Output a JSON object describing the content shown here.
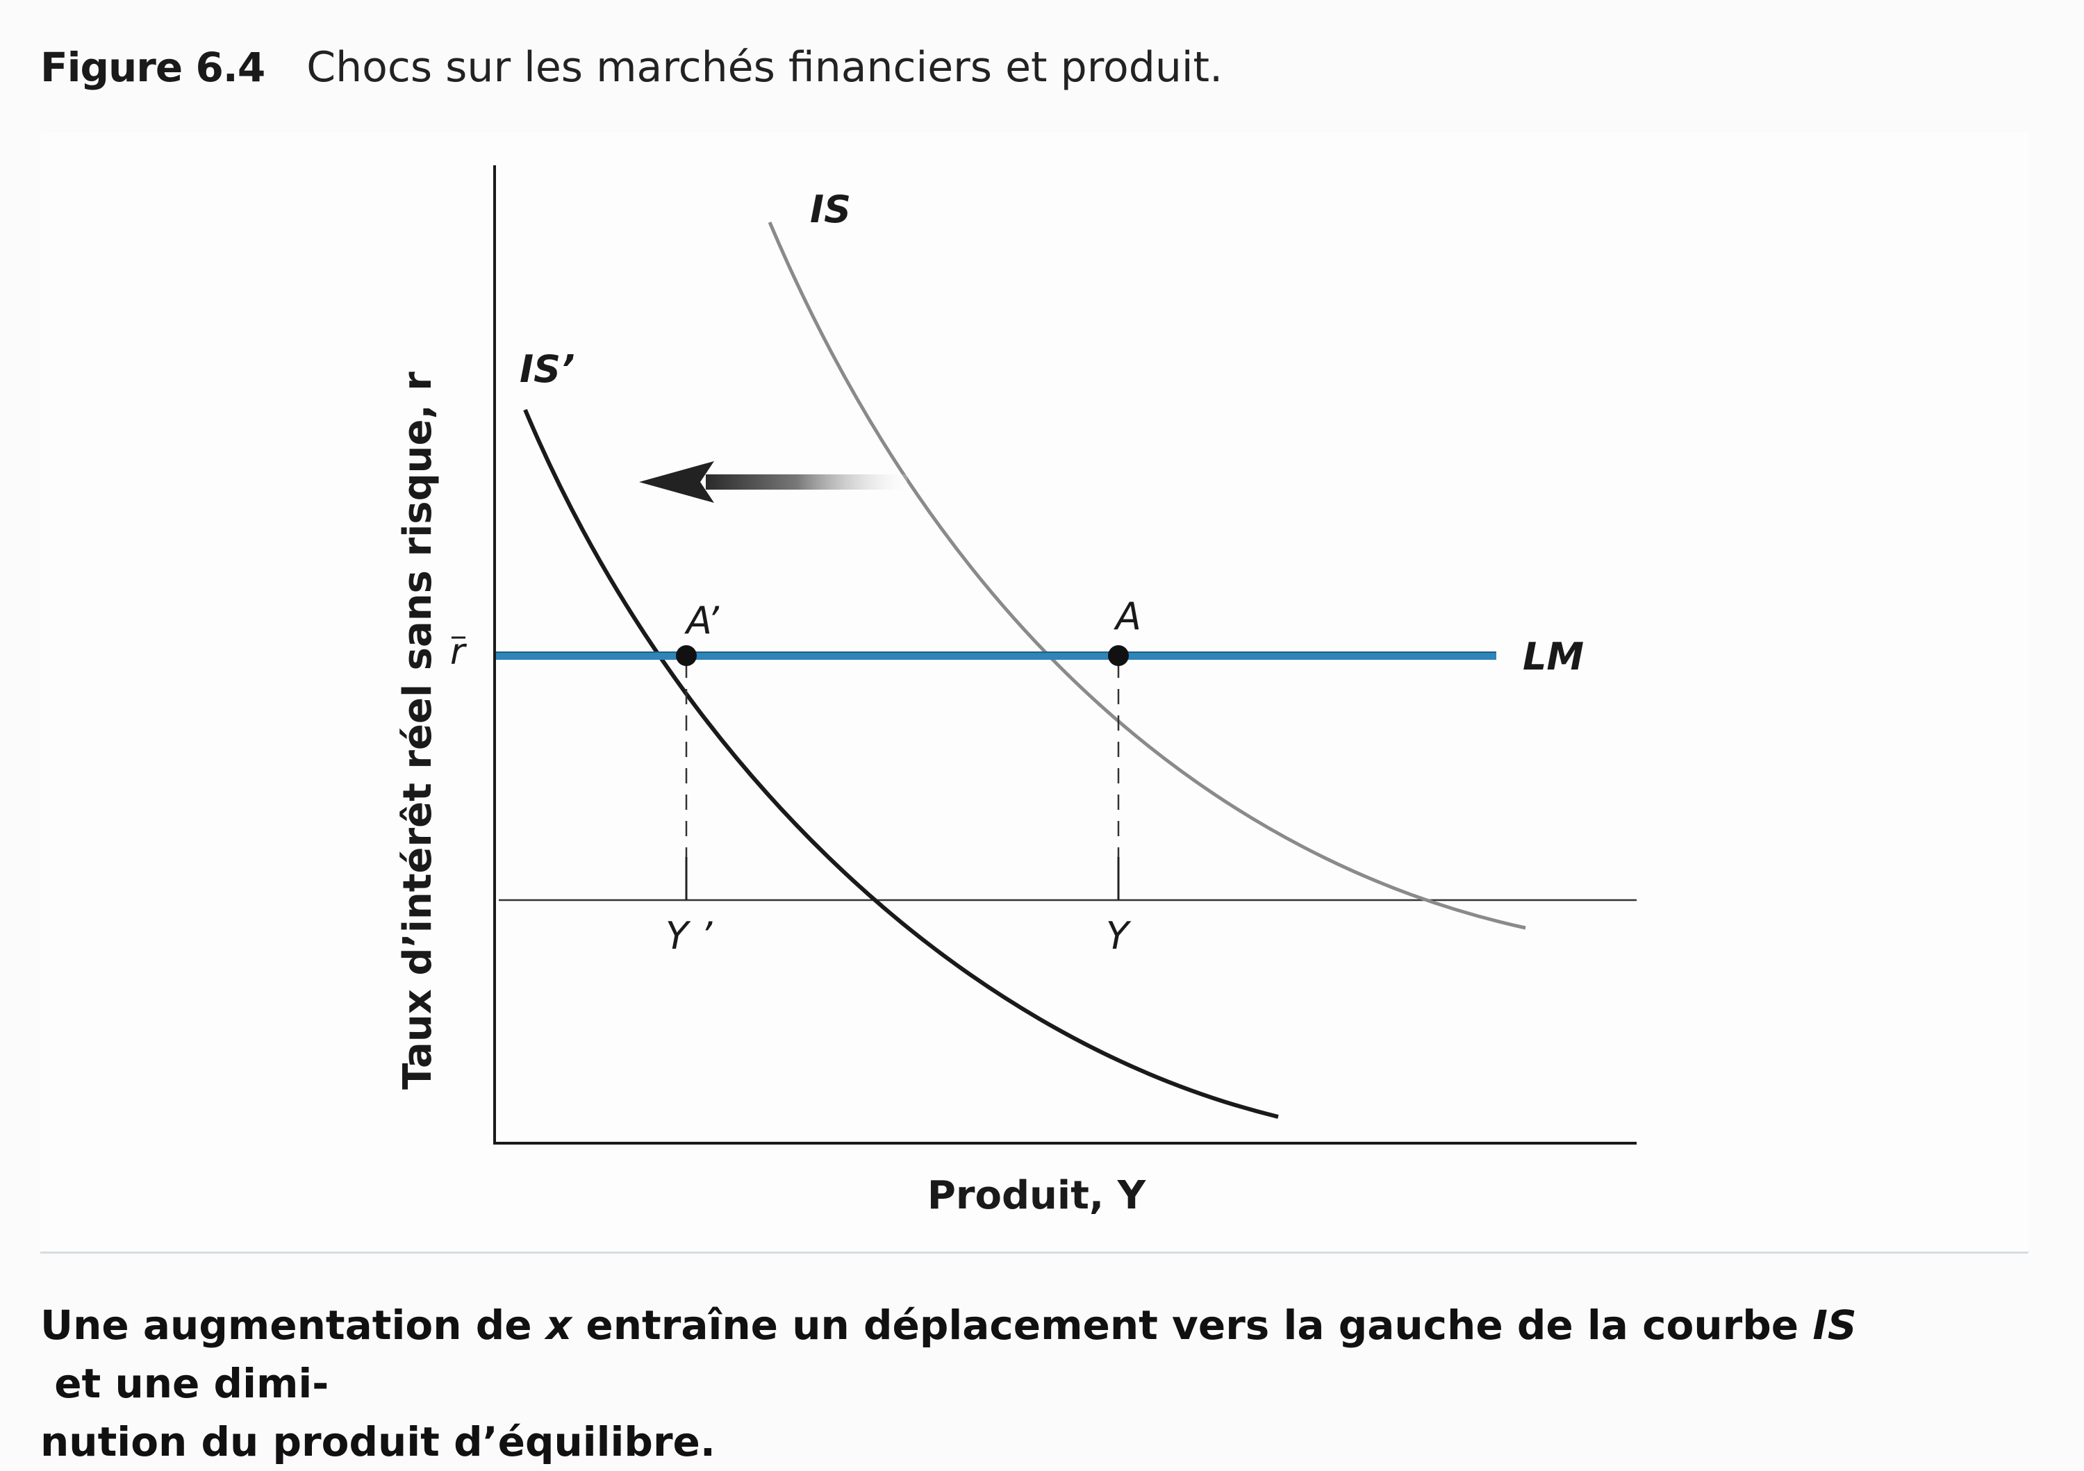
{
  "header": {
    "figure_label": "Figure 6.4",
    "figure_title": "Chocs sur les marchés financiers et produit."
  },
  "diagram": {
    "y_axis_label": "Taux d’intérêt réel sans risque, r",
    "x_axis_label": "Produit, Y",
    "r_bar_label": "r",
    "curves": {
      "is": "IS",
      "is_prime": "IS’",
      "lm": "LM"
    },
    "points": {
      "a": "A",
      "a_prime": "A’"
    },
    "x_ticks": {
      "y": "Y",
      "y_prime": "Y ’"
    },
    "colors": {
      "lm": "#2f84b8",
      "is": "#8a8a8a",
      "is_prime": "#1a1a1a",
      "arrow": "#333333"
    }
  },
  "caption": {
    "line1_part1": "Une augmentation de ",
    "line1_x": "x",
    "line1_part2": " entraîne un déplacement vers la gauche de la courbe ",
    "line1_is": "IS",
    "line1_part3": " et une dimi-",
    "line2": "nution du produit d’équilibre."
  }
}
